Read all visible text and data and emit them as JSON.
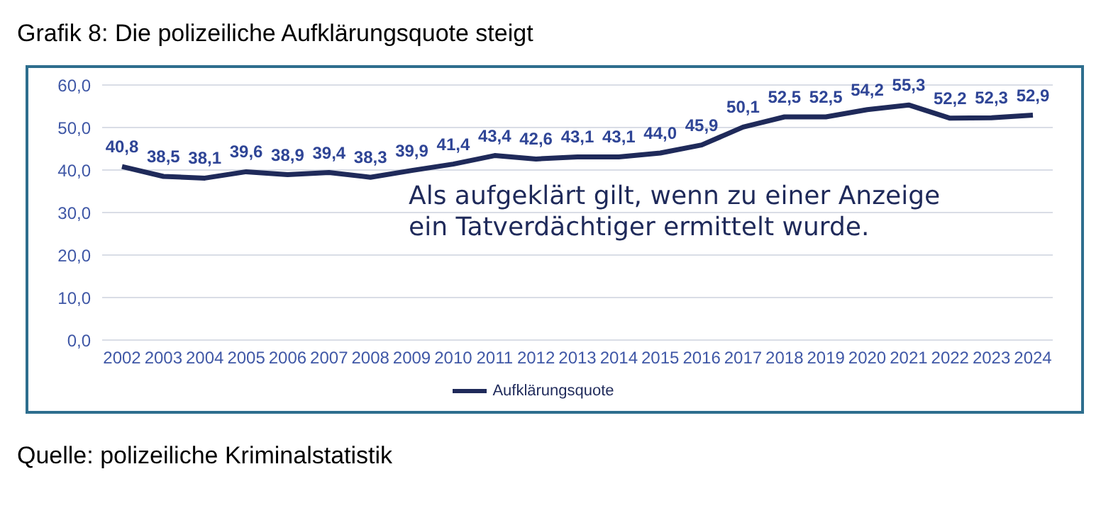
{
  "chart_data": {
    "type": "line",
    "title": "Grafik 8: Die polizeiliche Aufklärungsquote steigt",
    "categories": [
      "2002",
      "2003",
      "2004",
      "2005",
      "2006",
      "2007",
      "2008",
      "2009",
      "2010",
      "2011",
      "2012",
      "2013",
      "2014",
      "2015",
      "2016",
      "2017",
      "2018",
      "2019",
      "2020",
      "2021",
      "2022",
      "2023",
      "2024"
    ],
    "series": [
      {
        "name": "Aufklärungsquote",
        "color": "#1f2a5a",
        "values": [
          40.8,
          38.5,
          38.1,
          39.6,
          38.9,
          39.4,
          38.3,
          39.9,
          41.4,
          43.4,
          42.6,
          43.1,
          43.1,
          44.0,
          45.9,
          50.1,
          52.5,
          52.5,
          54.2,
          55.3,
          52.2,
          52.3,
          52.9
        ],
        "value_labels": [
          "40,8",
          "38,5",
          "38,1",
          "39,6",
          "38,9",
          "39,4",
          "38,3",
          "39,9",
          "41,4",
          "43,4",
          "42,6",
          "43,1",
          "43,1",
          "44,0",
          "45,9",
          "50,1",
          "52,5",
          "52,5",
          "54,2",
          "55,3",
          "52,2",
          "52,3",
          "52,9"
        ]
      }
    ],
    "ylim": [
      0,
      60
    ],
    "yticks": [
      {
        "value": 0,
        "label": "0,0"
      },
      {
        "value": 10,
        "label": "10,0"
      },
      {
        "value": 20,
        "label": "20,0"
      },
      {
        "value": 30,
        "label": "30,0"
      },
      {
        "value": 40,
        "label": "40,0"
      },
      {
        "value": 50,
        "label": "50,0"
      },
      {
        "value": 60,
        "label": "60,0"
      }
    ],
    "grid": "y",
    "legend": "bottom",
    "marker": "none",
    "line_style": "solid",
    "annotations": [
      "Als aufgeklärt gilt, wenn zu einer Anzeige ein Tatverdächtiger ermittelt wurde.",
      "Quelle: polizeiliche Kriminalstatistik"
    ]
  }
}
